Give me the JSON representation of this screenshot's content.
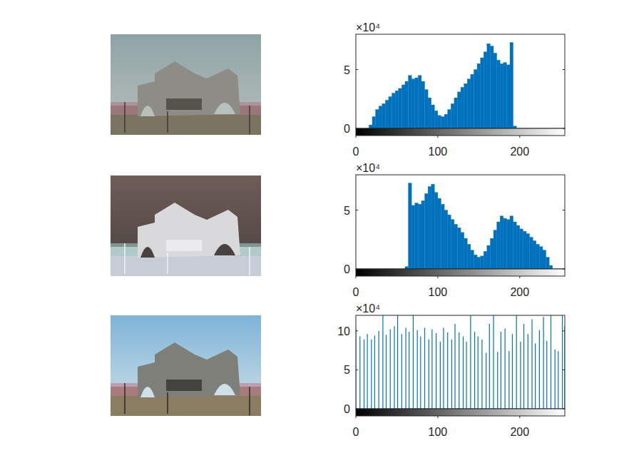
{
  "chart_data": [
    {
      "type": "histogram",
      "color": "#0072bd",
      "annotations": [
        "×10⁴"
      ],
      "bins": [
        0,
        4,
        8,
        12,
        16,
        20,
        24,
        28,
        32,
        36,
        40,
        44,
        48,
        52,
        56,
        60,
        64,
        68,
        72,
        76,
        80,
        84,
        88,
        92,
        96,
        100,
        104,
        108,
        112,
        116,
        120,
        124,
        128,
        132,
        136,
        140,
        144,
        148,
        152,
        156,
        160,
        164,
        168,
        172,
        176,
        180,
        184,
        188,
        192,
        196,
        200,
        204,
        208,
        212,
        216,
        220,
        224,
        228,
        232,
        236,
        240,
        244,
        248,
        252,
        256
      ],
      "values": [
        0,
        0,
        0,
        0,
        0.3,
        1.0,
        1.6,
        1.9,
        2.1,
        2.4,
        2.7,
        3.0,
        3.2,
        3.4,
        3.7,
        4.0,
        4.5,
        4.2,
        4.3,
        4.5,
        4.0,
        3.3,
        2.6,
        2.0,
        1.5,
        1.1,
        1.0,
        1.2,
        1.6,
        2.1,
        2.6,
        3.1,
        3.5,
        3.8,
        4.2,
        4.6,
        5.0,
        5.5,
        6.0,
        6.5,
        7.2,
        7.0,
        6.4,
        5.8,
        5.5,
        5.6,
        5.4,
        7.3,
        0.2,
        0,
        0,
        0,
        0,
        0,
        0,
        0,
        0,
        0,
        0,
        0,
        0,
        0,
        0,
        0
      ],
      "xlim": [
        0,
        255
      ],
      "xticks": [
        0,
        100,
        200
      ],
      "ylim": [
        0,
        8
      ],
      "yticks": [
        0,
        5
      ]
    },
    {
      "type": "histogram",
      "color": "#0072bd",
      "annotations": [
        "×10⁴"
      ],
      "bins": [
        0,
        4,
        8,
        12,
        16,
        20,
        24,
        28,
        32,
        36,
        40,
        44,
        48,
        52,
        56,
        60,
        64,
        68,
        72,
        76,
        80,
        84,
        88,
        92,
        96,
        100,
        104,
        108,
        112,
        116,
        120,
        124,
        128,
        132,
        136,
        140,
        144,
        148,
        152,
        156,
        160,
        164,
        168,
        172,
        176,
        180,
        184,
        188,
        192,
        196,
        200,
        204,
        208,
        212,
        216,
        220,
        224,
        228,
        232,
        236,
        240,
        244,
        248,
        252,
        256
      ],
      "values": [
        0,
        0,
        0,
        0,
        0,
        0,
        0,
        0,
        0,
        0,
        0,
        0,
        0,
        0,
        0,
        0.2,
        7.3,
        5.4,
        5.6,
        5.5,
        5.8,
        6.4,
        7.0,
        7.2,
        6.5,
        6.0,
        5.5,
        5.0,
        4.6,
        4.2,
        3.8,
        3.5,
        3.1,
        2.6,
        2.1,
        1.6,
        1.2,
        1.0,
        1.1,
        1.5,
        2.0,
        2.6,
        3.3,
        4.0,
        4.5,
        4.3,
        4.2,
        4.5,
        4.0,
        3.7,
        3.4,
        3.2,
        3.0,
        2.7,
        2.4,
        2.1,
        1.9,
        1.6,
        1.0,
        0.3,
        0,
        0,
        0,
        0
      ],
      "xlim": [
        0,
        255
      ],
      "xticks": [
        0,
        100,
        200
      ],
      "ylim": [
        0,
        8
      ],
      "yticks": [
        0,
        5
      ]
    },
    {
      "type": "stem",
      "color": "#0072bd",
      "annotations": [
        "×10⁴"
      ],
      "x": [
        0,
        5,
        10,
        14,
        19,
        23,
        28,
        33,
        37,
        42,
        47,
        51,
        56,
        61,
        65,
        70,
        75,
        79,
        84,
        89,
        93,
        98,
        103,
        107,
        112,
        117,
        121,
        126,
        131,
        135,
        140,
        145,
        149,
        154,
        159,
        163,
        168,
        173,
        177,
        182,
        187,
        191,
        196,
        201,
        205,
        210,
        215,
        219,
        224,
        229,
        233,
        238,
        243,
        247,
        252,
        255
      ],
      "values": [
        10.3,
        9.3,
        8.9,
        9.6,
        8.9,
        9.4,
        10.0,
        12,
        9.5,
        10.2,
        10.6,
        12,
        9.6,
        10.4,
        9.9,
        12,
        10.1,
        9.3,
        10.4,
        8.9,
        10.2,
        9.7,
        8.6,
        10.4,
        9.8,
        8.9,
        10.9,
        9.8,
        9.3,
        8.6,
        12,
        9.9,
        9.3,
        8.9,
        7.2,
        10.9,
        12,
        7.3,
        9.9,
        10.3,
        7.4,
        9.6,
        12,
        8.6,
        10.9,
        9.6,
        11.5,
        8.4,
        10.1,
        11.8,
        8.7,
        12,
        7.6,
        7.4,
        12,
        10.6
      ],
      "xlim": [
        0,
        255
      ],
      "xticks": [
        0,
        100,
        200
      ],
      "ylim": [
        0,
        12
      ],
      "yticks": [
        0,
        5,
        10
      ]
    }
  ]
}
